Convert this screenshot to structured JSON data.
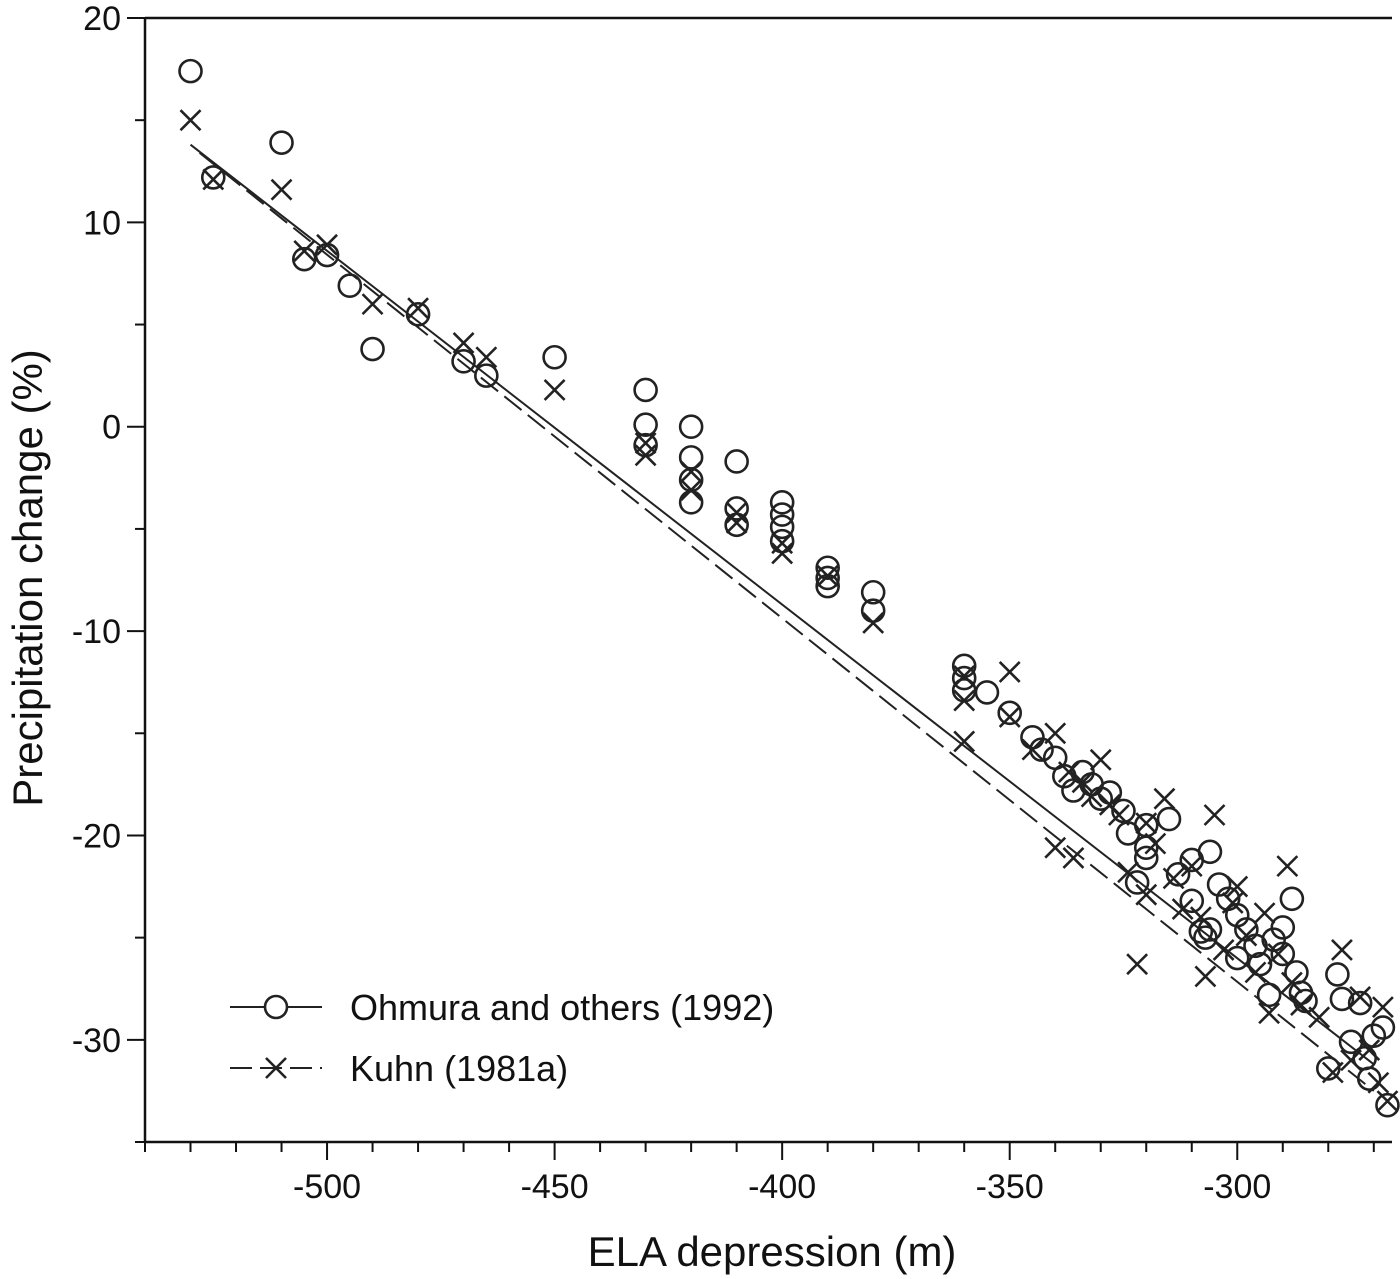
{
  "chart_data": {
    "type": "scatter",
    "title": "",
    "xlabel": "ELA depression (m)",
    "ylabel": "Precipitation change (%)",
    "xlim": [
      -540,
      -266
    ],
    "ylim": [
      -35,
      20
    ],
    "xticks_major": [
      -500,
      -450,
      -400,
      -350,
      -300
    ],
    "xticks_minor_step": 10,
    "yticks_major": [
      -30,
      -20,
      -10,
      0,
      10,
      20
    ],
    "yticks_minor_step": 5,
    "grid": false,
    "legend_position": "bottom-left",
    "series": [
      {
        "name": "Ohmura and others (1992)",
        "marker": "circle",
        "line_style": "solid",
        "fit_line": {
          "x": [
            -530,
            -270
          ],
          "y": [
            13.8,
            -31.2
          ]
        },
        "points": [
          [
            -530,
            17.4
          ],
          [
            -525,
            12.2
          ],
          [
            -510,
            13.9
          ],
          [
            -505,
            8.2
          ],
          [
            -500,
            8.4
          ],
          [
            -495,
            6.9
          ],
          [
            -490,
            3.8
          ],
          [
            -480,
            5.5
          ],
          [
            -470,
            3.2
          ],
          [
            -465,
            2.5
          ],
          [
            -450,
            3.4
          ],
          [
            -430,
            1.8
          ],
          [
            -430,
            0.1
          ],
          [
            -430,
            -0.9
          ],
          [
            -420,
            0.0
          ],
          [
            -420,
            -1.5
          ],
          [
            -420,
            -2.6
          ],
          [
            -420,
            -3.7
          ],
          [
            -410,
            -1.7
          ],
          [
            -410,
            -4.0
          ],
          [
            -410,
            -4.8
          ],
          [
            -400,
            -3.7
          ],
          [
            -400,
            -4.3
          ],
          [
            -400,
            -4.9
          ],
          [
            -400,
            -5.6
          ],
          [
            -390,
            -6.9
          ],
          [
            -390,
            -7.4
          ],
          [
            -390,
            -7.8
          ],
          [
            -380,
            -8.1
          ],
          [
            -380,
            -9.0
          ],
          [
            -360,
            -11.7
          ],
          [
            -360,
            -12.3
          ],
          [
            -360,
            -12.9
          ],
          [
            -355,
            -13.0
          ],
          [
            -350,
            -14.0
          ],
          [
            -345,
            -15.2
          ],
          [
            -343,
            -15.8
          ],
          [
            -340,
            -16.2
          ],
          [
            -338,
            -17.1
          ],
          [
            -336,
            -17.8
          ],
          [
            -334,
            -16.9
          ],
          [
            -332,
            -17.5
          ],
          [
            -330,
            -18.2
          ],
          [
            -328,
            -17.9
          ],
          [
            -325,
            -18.8
          ],
          [
            -324,
            -19.9
          ],
          [
            -322,
            -22.3
          ],
          [
            -320,
            -19.5
          ],
          [
            -320,
            -20.6
          ],
          [
            -320,
            -21.1
          ],
          [
            -315,
            -19.2
          ],
          [
            -313,
            -21.9
          ],
          [
            -310,
            -21.2
          ],
          [
            -310,
            -23.2
          ],
          [
            -308,
            -24.7
          ],
          [
            -307,
            -25.0
          ],
          [
            -306,
            -24.6
          ],
          [
            -306,
            -20.8
          ],
          [
            -304,
            -22.4
          ],
          [
            -302,
            -23.1
          ],
          [
            -300,
            -23.9
          ],
          [
            -300,
            -26.0
          ],
          [
            -298,
            -24.6
          ],
          [
            -296,
            -25.4
          ],
          [
            -295,
            -26.3
          ],
          [
            -293,
            -27.8
          ],
          [
            -292,
            -25.1
          ],
          [
            -290,
            -24.5
          ],
          [
            -290,
            -25.8
          ],
          [
            -288,
            -23.1
          ],
          [
            -287,
            -26.7
          ],
          [
            -286,
            -27.7
          ],
          [
            -285,
            -28.1
          ],
          [
            -280,
            -31.4
          ],
          [
            -278,
            -26.8
          ],
          [
            -277,
            -28.0
          ],
          [
            -275,
            -30.1
          ],
          [
            -273,
            -28.2
          ],
          [
            -272,
            -30.9
          ],
          [
            -271,
            -31.9
          ],
          [
            -270,
            -29.8
          ],
          [
            -268,
            -29.4
          ],
          [
            -267,
            -33.2
          ]
        ]
      },
      {
        "name": "Kuhn (1981a)",
        "marker": "x",
        "line_style": "dashed",
        "fit_line": {
          "x": [
            -528,
            -270
          ],
          "y": [
            13.4,
            -32.5
          ]
        },
        "points": [
          [
            -530,
            15.0
          ],
          [
            -525,
            12.1
          ],
          [
            -510,
            11.6
          ],
          [
            -505,
            8.6
          ],
          [
            -500,
            8.9
          ],
          [
            -490,
            6.0
          ],
          [
            -480,
            5.8
          ],
          [
            -470,
            4.1
          ],
          [
            -465,
            3.4
          ],
          [
            -450,
            1.8
          ],
          [
            -430,
            -1.4
          ],
          [
            -430,
            -0.8
          ],
          [
            -420,
            -2.2
          ],
          [
            -420,
            -3.1
          ],
          [
            -410,
            -4.2
          ],
          [
            -410,
            -4.7
          ],
          [
            -400,
            -5.7
          ],
          [
            -400,
            -6.2
          ],
          [
            -390,
            -7.3
          ],
          [
            -380,
            -9.6
          ],
          [
            -360,
            -12.2
          ],
          [
            -360,
            -13.4
          ],
          [
            -360,
            -15.4
          ],
          [
            -350,
            -12.0
          ],
          [
            -350,
            -14.2
          ],
          [
            -345,
            -15.8
          ],
          [
            -340,
            -15.0
          ],
          [
            -340,
            -20.6
          ],
          [
            -337,
            -16.9
          ],
          [
            -336,
            -21.1
          ],
          [
            -334,
            -17.4
          ],
          [
            -332,
            -18.1
          ],
          [
            -330,
            -16.3
          ],
          [
            -328,
            -18.5
          ],
          [
            -326,
            -19.0
          ],
          [
            -324,
            -21.8
          ],
          [
            -322,
            -26.3
          ],
          [
            -320,
            -19.4
          ],
          [
            -320,
            -22.9
          ],
          [
            -318,
            -20.4
          ],
          [
            -316,
            -18.2
          ],
          [
            -314,
            -22.1
          ],
          [
            -312,
            -23.6
          ],
          [
            -310,
            -21.5
          ],
          [
            -308,
            -24.0
          ],
          [
            -307,
            -26.9
          ],
          [
            -305,
            -19.0
          ],
          [
            -303,
            -25.6
          ],
          [
            -301,
            -23.3
          ],
          [
            -300,
            -22.5
          ],
          [
            -298,
            -24.9
          ],
          [
            -296,
            -26.7
          ],
          [
            -294,
            -23.8
          ],
          [
            -293,
            -28.7
          ],
          [
            -291,
            -25.8
          ],
          [
            -289,
            -21.5
          ],
          [
            -288,
            -27.2
          ],
          [
            -286,
            -28.3
          ],
          [
            -282,
            -28.9
          ],
          [
            -279,
            -31.6
          ],
          [
            -277,
            -25.6
          ],
          [
            -275,
            -31.0
          ],
          [
            -273,
            -27.9
          ],
          [
            -271,
            -30.5
          ],
          [
            -269,
            -32.1
          ],
          [
            -268,
            -28.4
          ],
          [
            -267,
            -33.0
          ]
        ]
      }
    ]
  }
}
